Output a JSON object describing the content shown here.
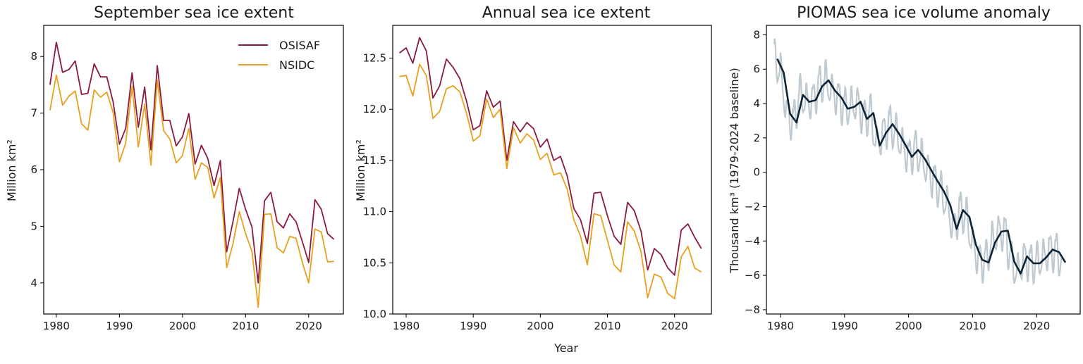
{
  "chart_data": [
    {
      "type": "line",
      "title": "September sea ice extent",
      "xlabel": "",
      "ylabel": "Million km²",
      "xlim": [
        1978,
        2025.5
      ],
      "ylim": [
        3.45,
        8.55
      ],
      "xticks": [
        "1980",
        "1990",
        "2000",
        "2010",
        "2020"
      ],
      "yticks": [
        "4",
        "5",
        "6",
        "7",
        "8"
      ],
      "legend": "top-right",
      "x": [
        1979,
        1980,
        1981,
        1982,
        1983,
        1984,
        1985,
        1986,
        1987,
        1988,
        1989,
        1990,
        1991,
        1992,
        1993,
        1994,
        1995,
        1996,
        1997,
        1998,
        1999,
        2000,
        2001,
        2002,
        2003,
        2004,
        2005,
        2006,
        2007,
        2008,
        2009,
        2010,
        2011,
        2012,
        2013,
        2014,
        2015,
        2016,
        2017,
        2018,
        2019,
        2020,
        2021,
        2022,
        2023,
        2024
      ],
      "series": [
        {
          "name": "OSISAF",
          "color": "#8b1a3c",
          "values": [
            7.5,
            8.25,
            7.72,
            7.77,
            7.92,
            7.33,
            7.35,
            7.87,
            7.64,
            7.64,
            7.2,
            6.45,
            6.73,
            7.71,
            6.75,
            7.46,
            6.35,
            7.84,
            6.87,
            6.87,
            6.42,
            6.58,
            6.99,
            6.1,
            6.43,
            6.2,
            5.72,
            6.16,
            4.55,
            5.08,
            5.67,
            5.3,
            4.99,
            4.0,
            5.45,
            5.6,
            5.08,
            4.97,
            5.22,
            5.08,
            4.73,
            4.36,
            5.47,
            5.3,
            4.87,
            4.77
          ]
        },
        {
          "name": "NSIDC",
          "color": "#e8a020",
          "values": [
            7.05,
            7.67,
            7.14,
            7.3,
            7.39,
            6.81,
            6.7,
            7.41,
            7.28,
            7.37,
            7.01,
            6.14,
            6.47,
            7.47,
            6.4,
            7.16,
            6.08,
            7.58,
            6.69,
            6.54,
            6.12,
            6.25,
            6.73,
            5.83,
            6.12,
            6.04,
            5.5,
            5.86,
            4.27,
            4.69,
            5.26,
            4.87,
            4.56,
            3.57,
            5.21,
            5.22,
            4.62,
            4.53,
            4.82,
            4.79,
            4.36,
            4.0,
            4.95,
            4.9,
            4.37,
            4.38
          ]
        }
      ]
    },
    {
      "type": "line",
      "title": "Annual sea ice extent",
      "xlabel": "Year",
      "ylabel": "Million km²",
      "xlim": [
        1978,
        2025.5
      ],
      "ylim": [
        10.0,
        12.82
      ],
      "xticks": [
        "1980",
        "1990",
        "2000",
        "2010",
        "2020"
      ],
      "yticks": [
        "10.0",
        "10.5",
        "11.0",
        "11.5",
        "12.0",
        "12.5"
      ],
      "x": [
        1979,
        1980,
        1981,
        1982,
        1983,
        1984,
        1985,
        1986,
        1987,
        1988,
        1989,
        1990,
        1991,
        1992,
        1993,
        1994,
        1995,
        1996,
        1997,
        1998,
        1999,
        2000,
        2001,
        2002,
        2003,
        2004,
        2005,
        2006,
        2007,
        2008,
        2009,
        2010,
        2011,
        2012,
        2013,
        2014,
        2015,
        2016,
        2017,
        2018,
        2019,
        2020,
        2021,
        2022,
        2023,
        2024
      ],
      "series": [
        {
          "color": "#8b1a3c",
          "values": [
            12.55,
            12.6,
            12.45,
            12.7,
            12.57,
            12.11,
            12.23,
            12.49,
            12.41,
            12.3,
            12.08,
            11.8,
            11.84,
            12.18,
            12.02,
            12.08,
            11.5,
            11.88,
            11.78,
            11.87,
            11.81,
            11.63,
            11.71,
            11.5,
            11.54,
            11.35,
            11.03,
            10.92,
            10.69,
            11.18,
            11.19,
            10.96,
            10.76,
            10.68,
            11.09,
            11.01,
            10.81,
            10.43,
            10.64,
            10.58,
            10.45,
            10.38,
            10.82,
            10.88,
            10.75,
            10.64
          ]
        },
        {
          "color": "#e8a020",
          "values": [
            12.32,
            12.33,
            12.13,
            12.44,
            12.33,
            11.91,
            11.98,
            12.2,
            12.23,
            12.17,
            11.96,
            11.69,
            11.74,
            12.1,
            11.92,
            12.0,
            11.42,
            11.82,
            11.67,
            11.76,
            11.7,
            11.51,
            11.57,
            11.36,
            11.38,
            11.22,
            10.92,
            10.76,
            10.48,
            10.98,
            10.96,
            10.72,
            10.48,
            10.41,
            10.9,
            10.81,
            10.61,
            10.16,
            10.39,
            10.36,
            10.2,
            10.15,
            10.56,
            10.66,
            10.45,
            10.41
          ]
        }
      ]
    },
    {
      "type": "line",
      "title": "PIOMAS sea ice volume anomaly",
      "xlabel": "",
      "ylabel": "Thousand km³ (1979-2024 baseline)",
      "xlim": [
        1977.8,
        2026.8
      ],
      "ylim": [
        -8.25,
        8.55
      ],
      "xticks": [
        "1980",
        "1990",
        "2000",
        "2010",
        "2020"
      ],
      "yticks": [
        "−8",
        "−6",
        "−4",
        "−2",
        "0",
        "2",
        "4",
        "6",
        "8"
      ],
      "x": [
        1979.5,
        1980.5,
        1981.5,
        1982.5,
        1983.5,
        1984.5,
        1985.5,
        1986.5,
        1987.5,
        1988.5,
        1989.5,
        1990.5,
        1991.5,
        1992.5,
        1993.5,
        1994.5,
        1995.5,
        1996.5,
        1997.5,
        1998.5,
        1999.5,
        2000.5,
        2001.5,
        2002.5,
        2003.5,
        2004.5,
        2005.5,
        2006.5,
        2007.5,
        2008.5,
        2009.5,
        2010.5,
        2011.5,
        2012.5,
        2013.5,
        2014.5,
        2015.5,
        2016.5,
        2017.5,
        2018.5,
        2019.5,
        2020.5,
        2021.5,
        2022.5,
        2023.5,
        2024.5
      ],
      "series": [
        {
          "color": "#0d2436",
          "values": [
            6.6,
            5.8,
            3.4,
            2.9,
            4.5,
            4.1,
            4.2,
            5.0,
            5.35,
            4.75,
            4.35,
            3.7,
            3.8,
            4.1,
            3.1,
            3.45,
            1.55,
            2.3,
            2.8,
            2.25,
            1.6,
            0.9,
            1.3,
            0.8,
            0.15,
            -0.5,
            -1.1,
            -1.9,
            -3.3,
            -2.2,
            -2.6,
            -4.2,
            -5.1,
            -5.25,
            -4.1,
            -3.45,
            -3.4,
            -5.2,
            -5.9,
            -4.9,
            -5.3,
            -5.3,
            -4.95,
            -4.5,
            -4.65,
            -5.25
          ]
        }
      ]
    }
  ]
}
